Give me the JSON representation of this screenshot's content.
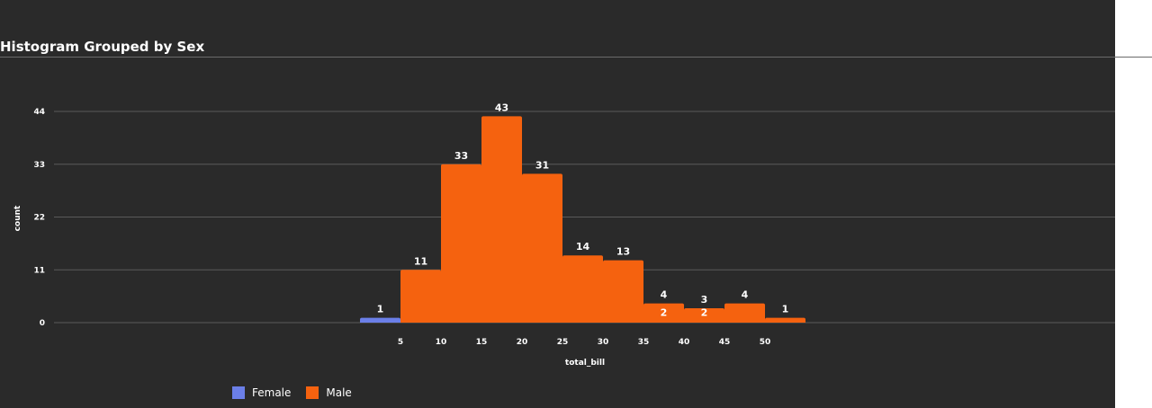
{
  "header": {
    "title": "Histogram Grouped by Sex"
  },
  "chart_data": {
    "type": "bar",
    "title": "Histogram Grouped by Sex",
    "xlabel": "total_bill",
    "ylabel": "count",
    "bin_width": 5,
    "x_ticks": [
      5,
      10,
      15,
      20,
      25,
      30,
      35,
      40,
      45,
      50
    ],
    "y_ticks": [
      0,
      11,
      22,
      33,
      44
    ],
    "ylim": [
      0,
      44
    ],
    "grid": true,
    "legend_position": "bottom",
    "series": [
      {
        "name": "Female",
        "color": "#6b7fe8",
        "bins": [
          [
            0,
            5,
            1
          ],
          [
            35,
            40,
            2
          ],
          [
            40,
            45,
            2
          ]
        ]
      },
      {
        "name": "Male",
        "color": "#f5620f",
        "bins": [
          [
            5,
            10,
            11
          ],
          [
            10,
            15,
            33
          ],
          [
            15,
            20,
            43
          ],
          [
            20,
            25,
            31
          ],
          [
            25,
            30,
            14
          ],
          [
            30,
            35,
            13
          ],
          [
            35,
            40,
            4
          ],
          [
            40,
            45,
            3
          ],
          [
            45,
            50,
            4
          ],
          [
            50,
            55,
            1
          ]
        ]
      }
    ]
  }
}
